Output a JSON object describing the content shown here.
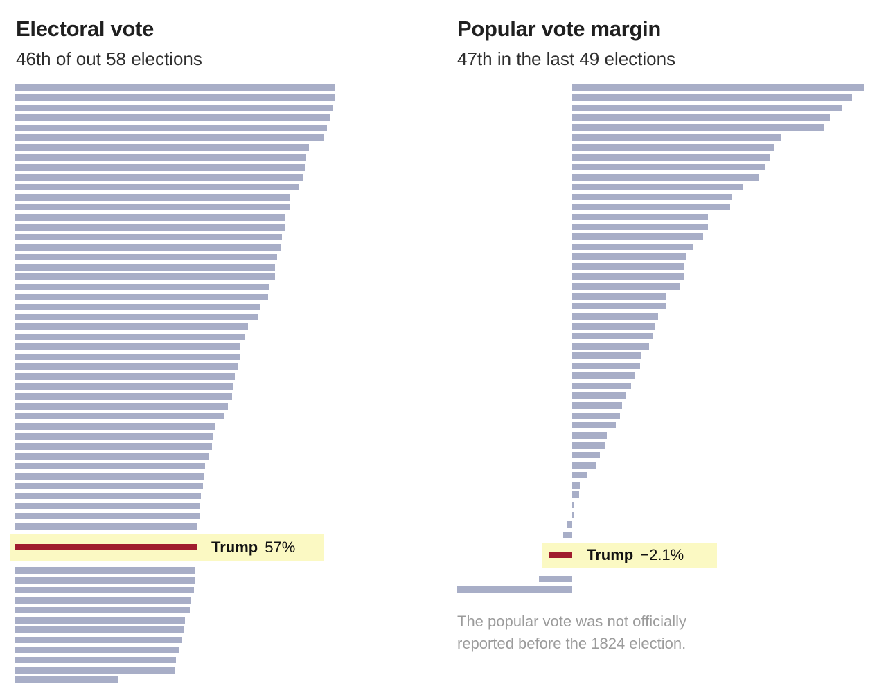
{
  "page": {
    "background": "#ffffff"
  },
  "colors": {
    "bar": "#a8aec7",
    "trump_bar": "#a01d2e",
    "highlight_background": "#fbf9c3",
    "title_text": "#1f1f1f",
    "footnote_text": "#9b9b9b"
  },
  "chart_data": [
    {
      "type": "bar",
      "orientation": "horizontal",
      "title": "Electoral vote",
      "subtitle": "46th of out 58 elections",
      "unit": "percent of electoral vote won",
      "axis": {
        "min": 0,
        "max": 100,
        "gridlines": false,
        "tick_labels_visible": false
      },
      "legend_position": "none",
      "highlight_index": 45,
      "highlight": {
        "name": "Trump",
        "value": 57,
        "value_label": "57%"
      },
      "values": [
        100,
        100,
        99.6,
        98.5,
        97.6,
        96.7,
        92,
        91,
        90.9,
        90.3,
        88.9,
        86.1,
        85.8,
        84.6,
        84.3,
        83.6,
        83.2,
        81.9,
        81.4,
        81.3,
        79.6,
        79.2,
        76.6,
        76.1,
        72.8,
        71.9,
        70.6,
        70.4,
        69.7,
        68.8,
        68.2,
        67.8,
        66.5,
        65.3,
        62.4,
        61.8,
        61.7,
        60.6,
        59.4,
        59,
        58.8,
        58.1,
        58,
        57.8,
        57.1,
        57,
        56.4,
        56.2,
        55.9,
        55.2,
        54.6,
        53.2,
        52.9,
        52.2,
        51.4,
        50.4,
        50.1,
        32.2
      ]
    },
    {
      "type": "bar",
      "orientation": "horizontal",
      "title": "Popular vote margin",
      "subtitle": "47th in the last 49 elections",
      "unit": "percentage points",
      "axis": {
        "min": -10.4,
        "max": 26.2,
        "gridlines": false,
        "tick_labels_visible": false
      },
      "legend_position": "none",
      "highlight_index": 46,
      "highlight": {
        "name": "Trump",
        "value": -2.1,
        "value_label": "−2.1%"
      },
      "values": [
        26.2,
        25.2,
        24.3,
        23.2,
        22.6,
        18.8,
        18.2,
        17.8,
        17.4,
        16.8,
        15.4,
        14.4,
        14.2,
        12.2,
        12.2,
        11.8,
        10.9,
        10.3,
        10.1,
        10,
        9.7,
        8.5,
        8.5,
        7.7,
        7.5,
        7.3,
        6.9,
        6.2,
        6.1,
        5.6,
        5.3,
        4.8,
        4.5,
        4.3,
        3.9,
        3.1,
        3,
        2.5,
        2.1,
        1.4,
        0.7,
        0.6,
        0.2,
        0.1,
        -0.5,
        -0.8,
        -2.1,
        -3,
        -10.4
      ],
      "footnote": "The popular vote was not officially reported before the 1824 election."
    }
  ]
}
